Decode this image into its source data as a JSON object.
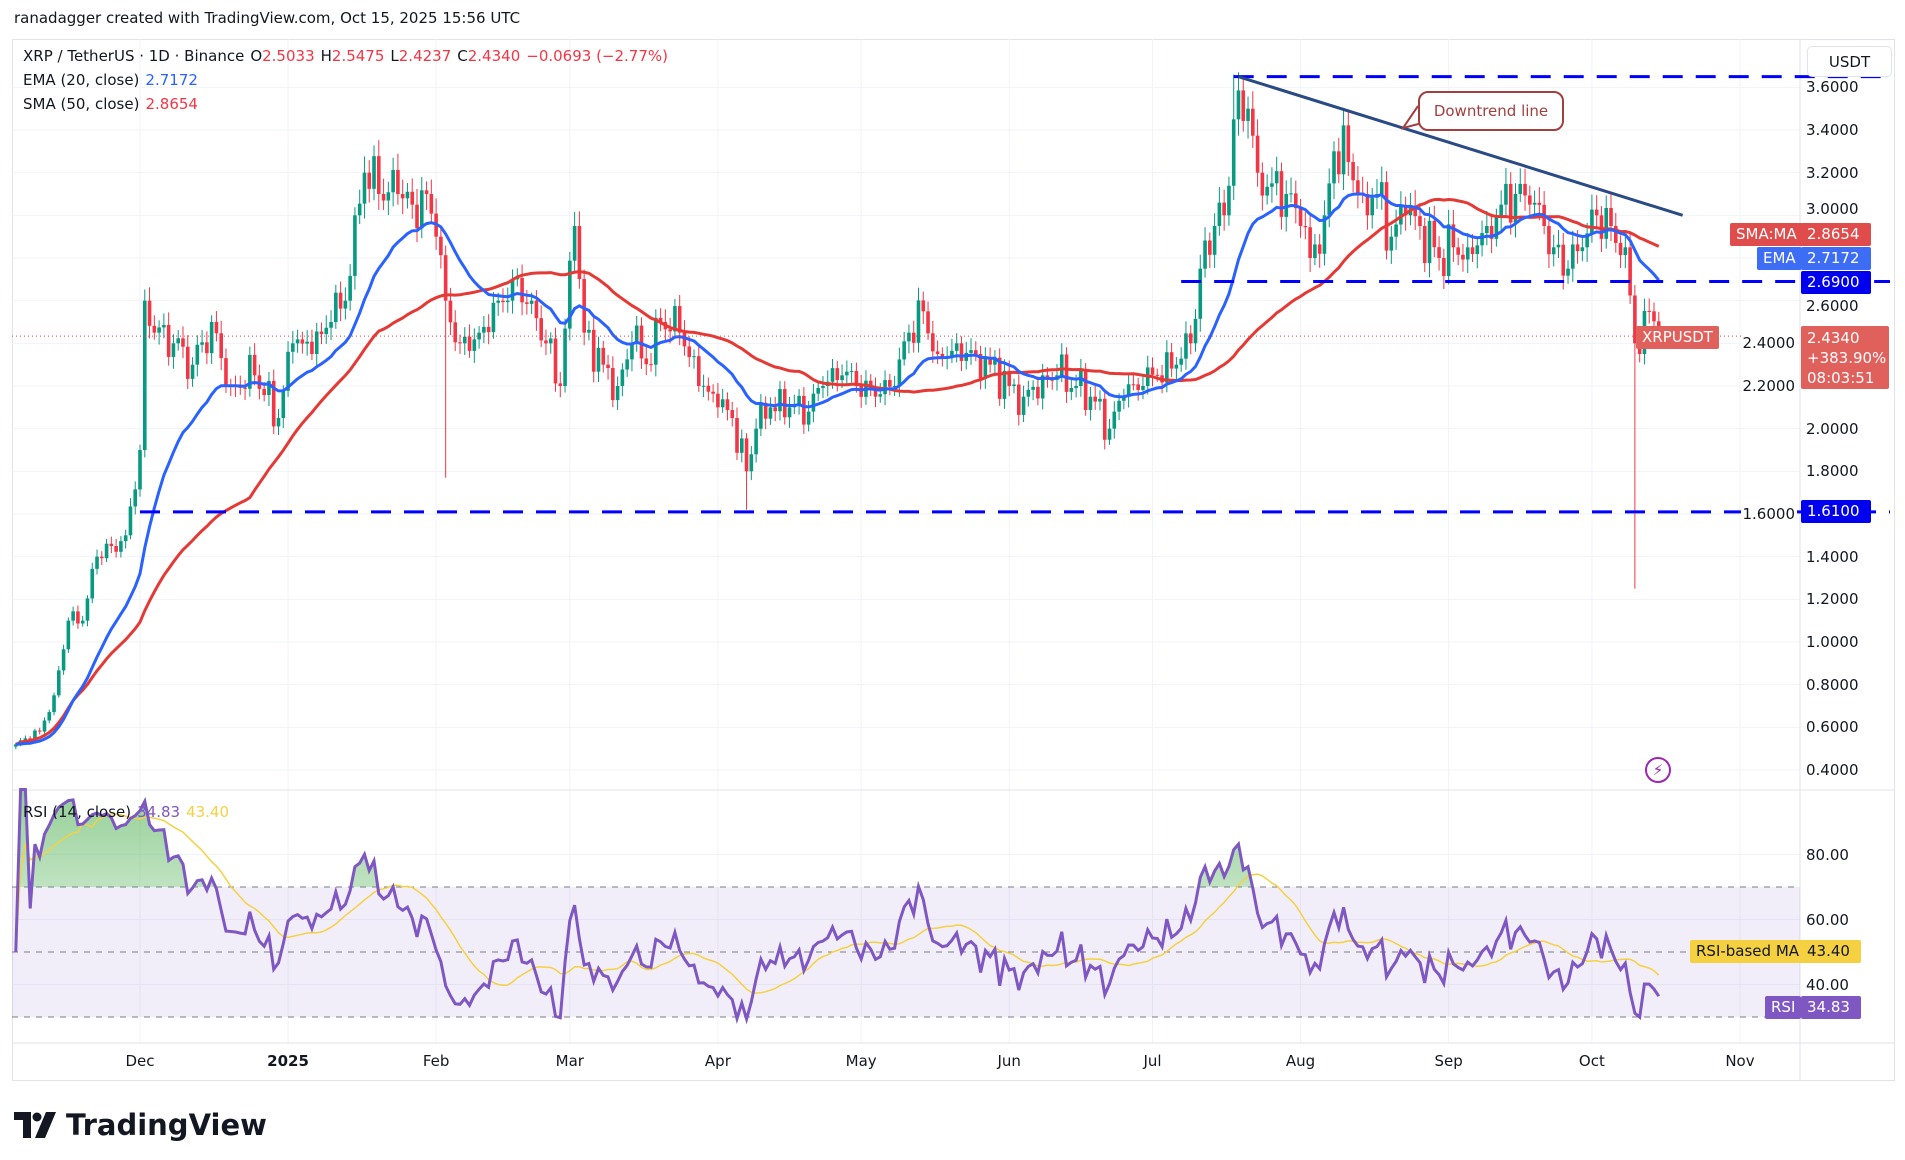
{
  "header": {
    "text": "ranadagger created with TradingView.com, Oct 15, 2025 15:56 UTC"
  },
  "legend": {
    "symbol": "XRP / TetherUS · 1D · Binance",
    "o_label": "O",
    "o": "2.5033",
    "h_label": "H",
    "h": "2.5475",
    "l_label": "L",
    "l": "2.4237",
    "c_label": "C",
    "c": "2.4340",
    "change": "−0.0693 (−2.77%)",
    "ema_label": "EMA (20, close)",
    "ema_value": "2.7172",
    "sma_label": "SMA (50, close)",
    "sma_value": "2.8654",
    "rsi_label": "RSI (14, close)",
    "rsi_value": "34.83",
    "rsi_ma_value": "43.40"
  },
  "axis": {
    "currency": "USDT",
    "price_ticks": [
      "3.6000",
      "3.4000",
      "3.2000",
      "3.0000",
      "2.6000",
      "2.4000",
      "2.2000",
      "2.0000",
      "1.8000",
      "1.6000",
      "1.4000",
      "1.2000",
      "1.0000",
      "0.8000",
      "0.6000",
      "0.4000"
    ],
    "rsi_ticks": [
      "80.00",
      "60.00",
      "40.00"
    ],
    "time_ticks": [
      {
        "label": "Dec",
        "date": "2024-12-01"
      },
      {
        "label": "2025",
        "date": "2025-01-01"
      },
      {
        "label": "Feb",
        "date": "2025-02-01"
      },
      {
        "label": "Mar",
        "date": "2025-03-01"
      },
      {
        "label": "Apr",
        "date": "2025-04-01"
      },
      {
        "label": "May",
        "date": "2025-05-01"
      },
      {
        "label": "Jun",
        "date": "2025-06-01"
      },
      {
        "label": "Jul",
        "date": "2025-07-01"
      },
      {
        "label": "Aug",
        "date": "2025-08-01"
      },
      {
        "label": "Sep",
        "date": "2025-09-01"
      },
      {
        "label": "Oct",
        "date": "2025-10-01"
      },
      {
        "label": "Nov",
        "date": "2025-11-01"
      }
    ]
  },
  "tags": {
    "sma_name": "SMA:MA",
    "sma_value": "2.8654",
    "ema_name": "EMA",
    "ema_value": "2.7172",
    "level_value": "2.6900",
    "symbol_name": "XRPUSDT",
    "price": "2.4340",
    "pct": "+383.90%",
    "countdown": "08:03:51",
    "support_value": "1.6100",
    "rsi_ma_name": "RSI-based MA",
    "rsi_ma_value": "43.40",
    "rsi_name": "RSI",
    "rsi_value": "34.83"
  },
  "annotation": {
    "text": "Downtrend line"
  },
  "brand": {
    "name": "TradingView"
  },
  "colors": {
    "up": "#089981",
    "down": "#f23645",
    "ema": "#2962ff",
    "sma": "#e53935",
    "level": "#0000ff",
    "trend": "#2a4a85",
    "rsi": "#7e57c2",
    "rsi_ma": "#f5d142"
  },
  "chart_data": {
    "type": "candlestick",
    "title": "XRP / TetherUS · 1D · Binance",
    "ylabel": "USDT",
    "ylim": [
      0.4,
      3.6
    ],
    "levels": [
      {
        "value": 3.65,
        "from": "2025-07-18"
      },
      {
        "value": 2.69,
        "from": "2025-07-07"
      },
      {
        "value": 1.61,
        "from": "2024-12-01"
      }
    ],
    "downtrend_line": {
      "from": {
        "date": "2025-07-19",
        "price": 3.65
      },
      "to": {
        "date": "2025-10-20",
        "price": 3.0
      }
    },
    "last_candle": {
      "date": "2025-10-15",
      "open": 2.5033,
      "high": 2.5475,
      "low": 2.4237,
      "close": 2.434
    },
    "special_lows": [
      {
        "date": "2025-10-10",
        "low": 1.25
      },
      {
        "date": "2025-04-07",
        "low": 1.62
      },
      {
        "date": "2025-02-03",
        "low": 1.77
      }
    ],
    "closes": [
      [
        "2024-11-05",
        0.52
      ],
      [
        "2024-11-10",
        0.58
      ],
      [
        "2024-11-13",
        0.75
      ],
      [
        "2024-11-16",
        1.1
      ],
      [
        "2024-11-19",
        1.1
      ],
      [
        "2024-11-22",
        1.4
      ],
      [
        "2024-11-25",
        1.45
      ],
      [
        "2024-11-28",
        1.5
      ],
      [
        "2024-12-01",
        1.9
      ],
      [
        "2024-12-02",
        2.6
      ],
      [
        "2024-12-04",
        2.45
      ],
      [
        "2024-12-08",
        2.4
      ],
      [
        "2024-12-12",
        2.3
      ],
      [
        "2024-12-16",
        2.5
      ],
      [
        "2024-12-20",
        2.2
      ],
      [
        "2024-12-25",
        2.25
      ],
      [
        "2024-12-30",
        2.05
      ],
      [
        "2025-01-02",
        2.4
      ],
      [
        "2025-01-06",
        2.35
      ],
      [
        "2025-01-10",
        2.5
      ],
      [
        "2025-01-13",
        2.6
      ],
      [
        "2025-01-15",
        3.0
      ],
      [
        "2025-01-17",
        3.2
      ],
      [
        "2025-01-20",
        3.1
      ],
      [
        "2025-01-24",
        3.1
      ],
      [
        "2025-01-27",
        3.05
      ],
      [
        "2025-01-30",
        3.1
      ],
      [
        "2025-02-01",
        2.9
      ],
      [
        "2025-02-03",
        2.6
      ],
      [
        "2025-02-06",
        2.4
      ],
      [
        "2025-02-10",
        2.45
      ],
      [
        "2025-02-14",
        2.6
      ],
      [
        "2025-02-17",
        2.7
      ],
      [
        "2025-02-21",
        2.6
      ],
      [
        "2025-02-24",
        2.4
      ],
      [
        "2025-02-27",
        2.2
      ],
      [
        "2025-03-02",
        2.95
      ],
      [
        "2025-03-04",
        2.45
      ],
      [
        "2025-03-08",
        2.3
      ],
      [
        "2025-03-11",
        2.2
      ],
      [
        "2025-03-14",
        2.4
      ],
      [
        "2025-03-18",
        2.3
      ],
      [
        "2025-03-20",
        2.5
      ],
      [
        "2025-03-24",
        2.45
      ],
      [
        "2025-03-28",
        2.2
      ],
      [
        "2025-04-01",
        2.1
      ],
      [
        "2025-04-04",
        2.05
      ],
      [
        "2025-04-07",
        1.8
      ],
      [
        "2025-04-09",
        2.0
      ],
      [
        "2025-04-12",
        2.1
      ],
      [
        "2025-04-16",
        2.1
      ],
      [
        "2025-04-20",
        2.08
      ],
      [
        "2025-04-23",
        2.2
      ],
      [
        "2025-04-27",
        2.25
      ],
      [
        "2025-04-30",
        2.2
      ],
      [
        "2025-05-04",
        2.15
      ],
      [
        "2025-05-08",
        2.2
      ],
      [
        "2025-05-11",
        2.45
      ],
      [
        "2025-05-14",
        2.55
      ],
      [
        "2025-05-17",
        2.35
      ],
      [
        "2025-05-21",
        2.4
      ],
      [
        "2025-05-25",
        2.35
      ],
      [
        "2025-05-28",
        2.3
      ],
      [
        "2025-06-01",
        2.2
      ],
      [
        "2025-06-04",
        2.15
      ],
      [
        "2025-06-08",
        2.25
      ],
      [
        "2025-06-11",
        2.25
      ],
      [
        "2025-06-15",
        2.2
      ],
      [
        "2025-06-18",
        2.15
      ],
      [
        "2025-06-22",
        2.0
      ],
      [
        "2025-06-25",
        2.15
      ],
      [
        "2025-06-29",
        2.2
      ],
      [
        "2025-07-02",
        2.25
      ],
      [
        "2025-07-06",
        2.3
      ],
      [
        "2025-07-09",
        2.4
      ],
      [
        "2025-07-11",
        2.75
      ],
      [
        "2025-07-14",
        2.95
      ],
      [
        "2025-07-16",
        3.0
      ],
      [
        "2025-07-18",
        3.45
      ],
      [
        "2025-07-21",
        3.5
      ],
      [
        "2025-07-23",
        3.2
      ],
      [
        "2025-07-26",
        3.15
      ],
      [
        "2025-07-29",
        3.1
      ],
      [
        "2025-08-01",
        2.95
      ],
      [
        "2025-08-03",
        2.8
      ],
      [
        "2025-08-06",
        3.0
      ],
      [
        "2025-08-08",
        3.3
      ],
      [
        "2025-08-11",
        3.25
      ],
      [
        "2025-08-14",
        3.1
      ],
      [
        "2025-08-17",
        3.1
      ],
      [
        "2025-08-20",
        2.9
      ],
      [
        "2025-08-23",
        3.0
      ],
      [
        "2025-08-26",
        2.95
      ],
      [
        "2025-08-30",
        2.8
      ],
      [
        "2025-09-02",
        2.85
      ],
      [
        "2025-09-05",
        2.85
      ],
      [
        "2025-09-09",
        2.95
      ],
      [
        "2025-09-12",
        3.05
      ],
      [
        "2025-09-15",
        3.1
      ],
      [
        "2025-09-18",
        3.05
      ],
      [
        "2025-09-21",
        2.95
      ],
      [
        "2025-09-23",
        2.85
      ],
      [
        "2025-09-26",
        2.75
      ],
      [
        "2025-09-29",
        2.85
      ],
      [
        "2025-10-02",
        3.0
      ],
      [
        "2025-10-05",
        2.95
      ],
      [
        "2025-10-08",
        2.85
      ],
      [
        "2025-10-10",
        2.4
      ],
      [
        "2025-10-11",
        2.35
      ],
      [
        "2025-10-13",
        2.55
      ],
      [
        "2025-10-14",
        2.5033
      ],
      [
        "2025-10-15",
        2.434
      ]
    ]
  }
}
